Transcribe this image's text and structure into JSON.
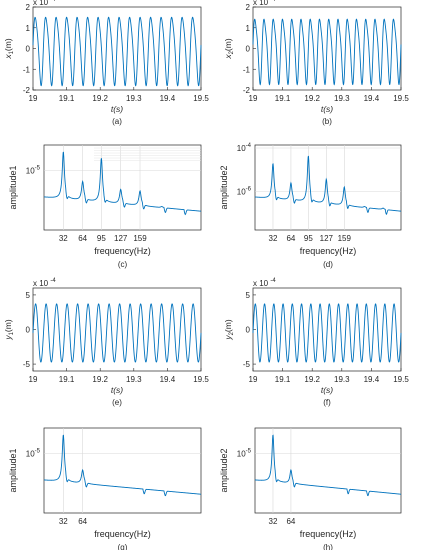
{
  "figure": {
    "panels": [
      {
        "id": "a",
        "caption": "(a)",
        "ylabel_main": "x",
        "ylabel_sub": "1",
        "ylabel_unit": "(m)",
        "xlabel": "t(s)",
        "exponent": "x 10"
      },
      {
        "id": "b",
        "caption": "(b)",
        "ylabel_main": "x",
        "ylabel_sub": "2",
        "ylabel_unit": "(m)",
        "xlabel": "t(s)",
        "exponent": "x 10"
      },
      {
        "id": "c",
        "caption": "(c)",
        "ylabel": "amplitude1",
        "xlabel": "frequency(Hz)"
      },
      {
        "id": "d",
        "caption": "(d)",
        "ylabel": "amplitude2",
        "xlabel": "frequency(Hz)"
      },
      {
        "id": "e",
        "caption": "(e)",
        "ylabel_main": "y",
        "ylabel_sub": "1",
        "ylabel_unit": "(m)",
        "xlabel": "t(s)",
        "exponent": "x 10"
      },
      {
        "id": "f",
        "caption": "(f)",
        "ylabel_main": "y",
        "ylabel_sub": "2",
        "ylabel_unit": "(m)",
        "xlabel": "t(s)",
        "exponent": "x 10"
      },
      {
        "id": "g",
        "caption": "(g)",
        "ylabel": "amplitude1",
        "xlabel": "frequency(Hz)"
      },
      {
        "id": "h",
        "caption": "(h)",
        "ylabel": "amplitude2",
        "xlabel": "frequency(Hz)"
      }
    ],
    "colors": {
      "signal": "#0072BD",
      "signal_light": "#4DBEEE",
      "accent": "#A2142F",
      "grid": "#d8d8d8",
      "axis": "#262626"
    }
  },
  "chart_data": [
    {
      "id": "a",
      "type": "line",
      "title": "",
      "xlabel": "t(s)",
      "ylabel": "x1(m)",
      "xlim": [
        19,
        19.5
      ],
      "ylim": [
        -2,
        2
      ],
      "y_exponent": "-4",
      "xticks": [
        "19",
        "19.1",
        "19.2",
        "19.3",
        "19.4",
        "19.5"
      ],
      "yticks": [
        "-2",
        "-1",
        "0",
        "1",
        "2"
      ],
      "series": [
        {
          "frequency_hz": 32,
          "amplitude": 1.6,
          "harmonic_hz": 64,
          "harmonic_amplitude": 0.25
        }
      ]
    },
    {
      "id": "b",
      "type": "line",
      "title": "",
      "xlabel": "t(s)",
      "ylabel": "x2(m)",
      "xlim": [
        19,
        19.5
      ],
      "ylim": [
        -2,
        2
      ],
      "y_exponent": "-4",
      "xticks": [
        "19",
        "19.1",
        "19.2",
        "19.3",
        "19.4",
        "19.5"
      ],
      "yticks": [
        "-2",
        "-1",
        "0",
        "1",
        "2"
      ],
      "series": [
        {
          "frequency_hz": 32,
          "amplitude": 1.5,
          "harmonic_hz": 64,
          "harmonic_amplitude": 0.3
        }
      ]
    },
    {
      "id": "c",
      "type": "line",
      "title": "",
      "xlabel": "frequency(Hz)",
      "ylabel": "amplitude1",
      "yscale": "log",
      "xticks": [
        "32",
        "64",
        "95",
        "127",
        "159"
      ],
      "ytick_label": "10",
      "ytick_exp": "-5",
      "peaks": [
        {
          "x": 32,
          "y": 1.0
        },
        {
          "x": 64,
          "y": 0.62
        },
        {
          "x": 95,
          "y": 0.92
        },
        {
          "x": 127,
          "y": 0.52
        },
        {
          "x": 159,
          "y": 0.5
        },
        {
          "x": 195,
          "y": 0.3
        },
        {
          "x": 228,
          "y": 0.25
        }
      ],
      "grid": true
    },
    {
      "id": "d",
      "type": "line",
      "title": "",
      "xlabel": "frequency(Hz)",
      "ylabel": "amplitude2",
      "yscale": "log",
      "xticks": [
        "32",
        "64",
        "95",
        "127",
        "159"
      ],
      "ytick_labels": [
        {
          "base": "10",
          "exp": "-4"
        },
        {
          "base": "10",
          "exp": "-6"
        }
      ],
      "peaks": [
        {
          "x": 32,
          "y": 0.85
        },
        {
          "x": 64,
          "y": 0.6
        },
        {
          "x": 95,
          "y": 0.95
        },
        {
          "x": 127,
          "y": 0.65
        },
        {
          "x": 159,
          "y": 0.55
        },
        {
          "x": 195,
          "y": 0.3
        },
        {
          "x": 228,
          "y": 0.28
        }
      ],
      "grid": true
    },
    {
      "id": "e",
      "type": "line",
      "title": "",
      "xlabel": "t(s)",
      "ylabel": "y1(m)",
      "xlim": [
        19,
        19.5
      ],
      "ylim": [
        -6,
        6
      ],
      "y_exponent": "-4",
      "xticks": [
        "19",
        "19.1",
        "19.2",
        "19.3",
        "19.4",
        "19.5"
      ],
      "yticks": [
        "-5",
        "0",
        "5"
      ],
      "series": [
        {
          "frequency_hz": 32,
          "amplitude": 4.2,
          "offset": -0.5
        }
      ]
    },
    {
      "id": "f",
      "type": "line",
      "title": "",
      "xlabel": "t(s)",
      "ylabel": "y2(m)",
      "xlim": [
        19,
        19.5
      ],
      "ylim": [
        -6,
        6
      ],
      "y_exponent": "-4",
      "xticks": [
        "19",
        "19.1",
        "19.2",
        "19.3",
        "19.4",
        "19.5"
      ],
      "yticks": [
        "-5",
        "0",
        "5"
      ],
      "series": [
        {
          "frequency_hz": 32,
          "amplitude": 4.2,
          "offset": -0.5
        }
      ]
    },
    {
      "id": "g",
      "type": "line",
      "title": "",
      "xlabel": "frequency(Hz)",
      "ylabel": "amplitude1",
      "yscale": "log",
      "xticks": [
        "32",
        "64"
      ],
      "ytick_label": "10",
      "ytick_exp": "-5",
      "peaks": [
        {
          "x": 32,
          "y": 1.0
        },
        {
          "x": 64,
          "y": 0.55
        },
        {
          "x": 160,
          "y": 0.12
        },
        {
          "x": 195,
          "y": 0.08
        }
      ],
      "grid": true
    },
    {
      "id": "h",
      "type": "line",
      "title": "",
      "xlabel": "frequency(Hz)",
      "ylabel": "amplitude2",
      "yscale": "log",
      "xticks": [
        "32",
        "64"
      ],
      "ytick_label": "10",
      "ytick_exp": "-5",
      "peaks": [
        {
          "x": 32,
          "y": 1.0
        },
        {
          "x": 64,
          "y": 0.55
        },
        {
          "x": 160,
          "y": 0.12
        },
        {
          "x": 195,
          "y": 0.08
        }
      ],
      "grid": true
    }
  ]
}
